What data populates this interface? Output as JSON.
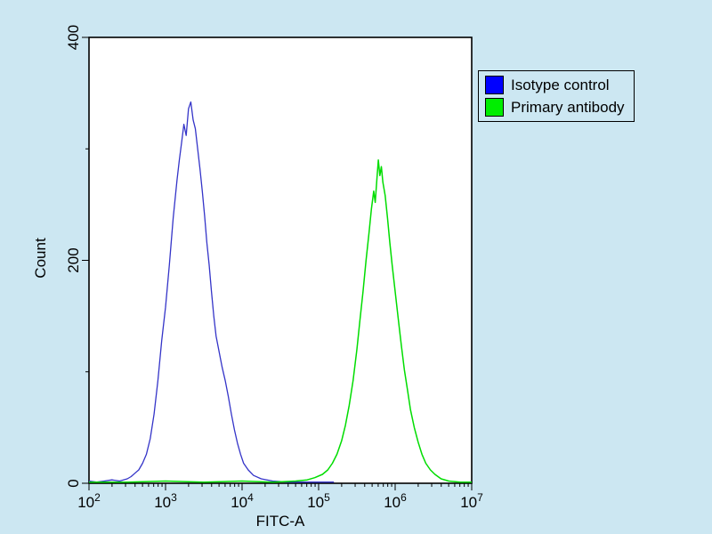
{
  "page": {
    "background": "#cce7f2"
  },
  "chart_data": {
    "type": "line",
    "title": "",
    "xlabel": "FITC-A",
    "ylabel": "Count",
    "x_scale": "log10",
    "x_range_log10": [
      2,
      7
    ],
    "x_major_ticks": [
      2,
      3,
      4,
      5,
      6,
      7
    ],
    "x_tick_base": "10",
    "ylim": [
      0,
      400
    ],
    "y_ticks": [
      0,
      200,
      400
    ],
    "y_minor_ticks": [
      100,
      300
    ],
    "grid": false,
    "plot_background": "#ffffff",
    "axis_color": "#000000",
    "legend": {
      "position": "top-right",
      "items": [
        {
          "label": "Isotype control",
          "color": "#0000ff"
        },
        {
          "label": "Primary antibody",
          "color": "#00ee00"
        }
      ]
    },
    "series": [
      {
        "name": "Isotype control",
        "color": "#3434c8",
        "width": 1.3,
        "points": [
          [
            2.0,
            2
          ],
          [
            2.1,
            1
          ],
          [
            2.2,
            2
          ],
          [
            2.3,
            3
          ],
          [
            2.4,
            2
          ],
          [
            2.5,
            4
          ],
          [
            2.55,
            6
          ],
          [
            2.6,
            9
          ],
          [
            2.65,
            12
          ],
          [
            2.7,
            18
          ],
          [
            2.75,
            26
          ],
          [
            2.8,
            40
          ],
          [
            2.85,
            62
          ],
          [
            2.9,
            92
          ],
          [
            2.95,
            128
          ],
          [
            3.0,
            158
          ],
          [
            3.05,
            196
          ],
          [
            3.1,
            238
          ],
          [
            3.15,
            272
          ],
          [
            3.18,
            290
          ],
          [
            3.21,
            306
          ],
          [
            3.24,
            322
          ],
          [
            3.27,
            312
          ],
          [
            3.3,
            336
          ],
          [
            3.33,
            342
          ],
          [
            3.36,
            326
          ],
          [
            3.39,
            318
          ],
          [
            3.42,
            300
          ],
          [
            3.45,
            282
          ],
          [
            3.48,
            262
          ],
          [
            3.51,
            240
          ],
          [
            3.54,
            216
          ],
          [
            3.57,
            196
          ],
          [
            3.6,
            172
          ],
          [
            3.63,
            150
          ],
          [
            3.66,
            132
          ],
          [
            3.7,
            118
          ],
          [
            3.74,
            104
          ],
          [
            3.78,
            92
          ],
          [
            3.82,
            78
          ],
          [
            3.86,
            62
          ],
          [
            3.9,
            48
          ],
          [
            3.94,
            36
          ],
          [
            3.98,
            26
          ],
          [
            4.02,
            18
          ],
          [
            4.08,
            12
          ],
          [
            4.15,
            7
          ],
          [
            4.25,
            4
          ],
          [
            4.4,
            2
          ],
          [
            4.6,
            1
          ],
          [
            4.9,
            1
          ],
          [
            5.2,
            1
          ]
        ]
      },
      {
        "name": "Primary antibody",
        "color": "#00dd00",
        "width": 1.5,
        "points": [
          [
            2.0,
            1
          ],
          [
            2.5,
            1
          ],
          [
            3.0,
            2
          ],
          [
            3.5,
            1
          ],
          [
            4.0,
            2
          ],
          [
            4.4,
            1
          ],
          [
            4.7,
            2
          ],
          [
            4.85,
            3
          ],
          [
            4.95,
            5
          ],
          [
            5.05,
            8
          ],
          [
            5.12,
            12
          ],
          [
            5.18,
            18
          ],
          [
            5.24,
            26
          ],
          [
            5.3,
            38
          ],
          [
            5.35,
            52
          ],
          [
            5.4,
            70
          ],
          [
            5.45,
            92
          ],
          [
            5.5,
            120
          ],
          [
            5.54,
            146
          ],
          [
            5.58,
            172
          ],
          [
            5.62,
            200
          ],
          [
            5.66,
            226
          ],
          [
            5.69,
            246
          ],
          [
            5.72,
            262
          ],
          [
            5.74,
            252
          ],
          [
            5.76,
            272
          ],
          [
            5.78,
            290
          ],
          [
            5.8,
            276
          ],
          [
            5.82,
            284
          ],
          [
            5.84,
            270
          ],
          [
            5.87,
            258
          ],
          [
            5.9,
            238
          ],
          [
            5.93,
            216
          ],
          [
            5.96,
            196
          ],
          [
            6.0,
            172
          ],
          [
            6.04,
            148
          ],
          [
            6.08,
            124
          ],
          [
            6.12,
            102
          ],
          [
            6.16,
            84
          ],
          [
            6.2,
            66
          ],
          [
            6.25,
            50
          ],
          [
            6.3,
            37
          ],
          [
            6.35,
            26
          ],
          [
            6.4,
            18
          ],
          [
            6.46,
            12
          ],
          [
            6.52,
            8
          ],
          [
            6.6,
            4
          ],
          [
            6.7,
            2
          ],
          [
            6.85,
            1
          ],
          [
            7.0,
            1
          ]
        ]
      }
    ]
  }
}
